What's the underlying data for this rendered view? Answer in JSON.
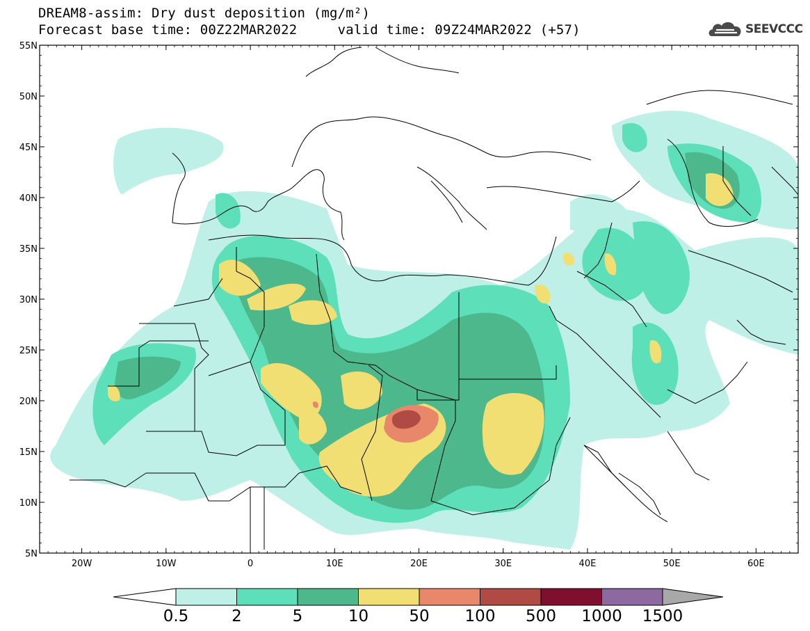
{
  "header": {
    "title_line1": "DREAM8-assim: Dry dust deposition (mg/m²)",
    "title_line2": "Forecast base time: 00Z22MAR2022     valid time: 09Z24MAR2022 (+57)"
  },
  "logo": {
    "text": "SEEVCCC",
    "icon": "cloud-icon"
  },
  "map": {
    "lon_range": [
      -25,
      65
    ],
    "lat_range": [
      5,
      55
    ],
    "lat_ticks": [
      "55N",
      "50N",
      "45N",
      "40N",
      "35N",
      "30N",
      "25N",
      "20N",
      "15N",
      "10N",
      "5N"
    ],
    "lon_ticks": [
      "20W",
      "10W",
      "0",
      "10E",
      "20E",
      "30E",
      "40E",
      "50E",
      "60E"
    ]
  },
  "colorbar": {
    "labels": [
      "0.5",
      "2",
      "5",
      "10",
      "50",
      "100",
      "500",
      "1000",
      "1500"
    ],
    "colors": [
      "#bff0e8",
      "#5ddfba",
      "#4cb88c",
      "#f2df74",
      "#e8876a",
      "#b04a44",
      "#800e2e",
      "#8c6aa0",
      "#a8a8a8"
    ]
  }
}
